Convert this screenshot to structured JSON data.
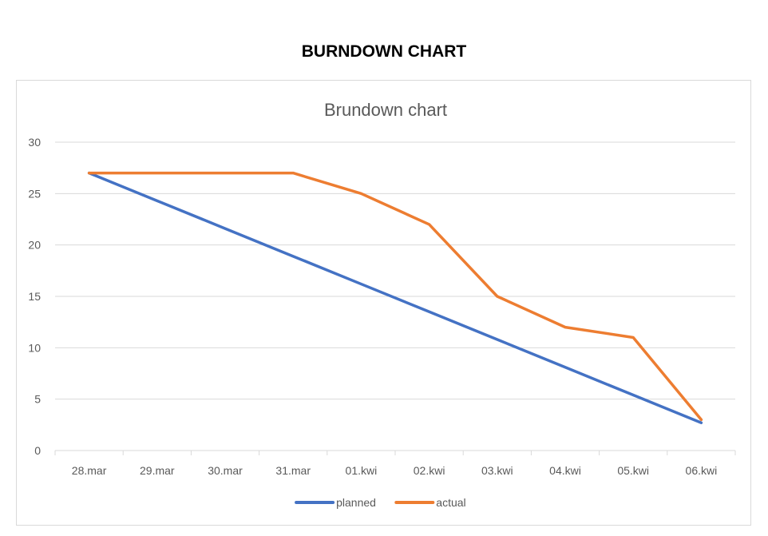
{
  "page": {
    "heading": "BURNDOWN CHART"
  },
  "chart_data": {
    "type": "line",
    "title": "Brundown chart",
    "xlabel": "",
    "ylabel": "",
    "categories": [
      "28.mar",
      "29.mar",
      "30.mar",
      "31.mar",
      "01.kwi",
      "02.kwi",
      "03.kwi",
      "04.kwi",
      "05.kwi",
      "06.kwi"
    ],
    "series": [
      {
        "name": "planned",
        "color": "#4472c4",
        "values": [
          27,
          24.3,
          21.6,
          18.9,
          16.2,
          13.5,
          10.8,
          8.1,
          5.4,
          2.7
        ]
      },
      {
        "name": "actual",
        "color": "#ed7d31",
        "values": [
          27,
          27,
          27,
          27,
          25,
          22,
          15,
          12,
          11,
          3
        ]
      }
    ],
    "ylim": [
      0,
      30
    ],
    "yticks": [
      0,
      5,
      10,
      15,
      20,
      25,
      30
    ],
    "grid": true,
    "legend": "bottom"
  }
}
